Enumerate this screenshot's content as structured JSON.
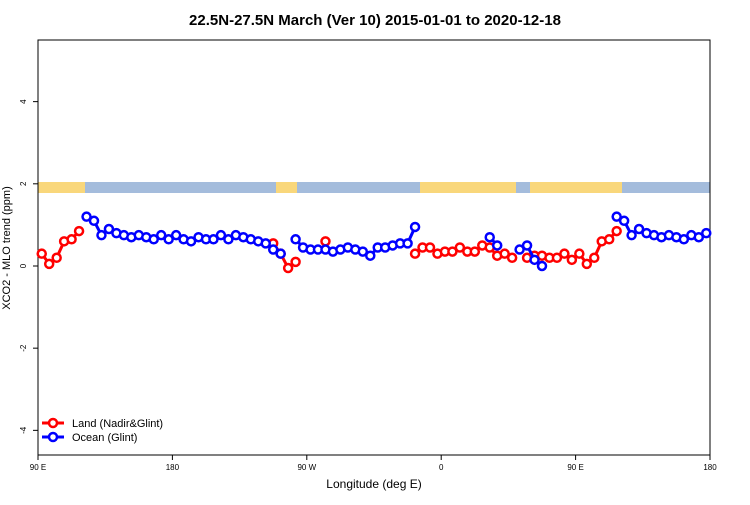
{
  "chart_data": {
    "type": "line",
    "title": "22.5N-27.5N March (Ver 10)   2015-01-01 to 2020-12-18",
    "x_label": "Longitude (deg E)",
    "y_label": "XCO2 - MLO trend (ppm)",
    "x": [
      92.5,
      97.5,
      102.5,
      107.5,
      112.5,
      117.5,
      122.5,
      127.5,
      132.5,
      137.5,
      142.5,
      147.5,
      152.5,
      157.5,
      162.5,
      167.5,
      172.5,
      177.5,
      182.5,
      187.5,
      192.5,
      197.5,
      202.5,
      207.5,
      212.5,
      217.5,
      222.5,
      227.5,
      232.5,
      237.5,
      242.5,
      247.5,
      252.5,
      257.5,
      262.5,
      267.5,
      272.5,
      277.5,
      282.5,
      287.5,
      292.5,
      297.5,
      302.5,
      307.5,
      312.5,
      317.5,
      322.5,
      327.5,
      332.5,
      337.5,
      342.5,
      347.5,
      352.5,
      357.5,
      362.5,
      367.5,
      372.5,
      377.5,
      382.5,
      387.5,
      392.5,
      397.5,
      402.5,
      407.5,
      412.5,
      417.5,
      422.5,
      427.5,
      432.5,
      437.5,
      442.5,
      447.5,
      452.5,
      457.5,
      462.5,
      467.5,
      472.5,
      477.5,
      482.5,
      487.5,
      492.5,
      497.5,
      502.5,
      507.5,
      512.5,
      517.5,
      522.5,
      527.5,
      532.5,
      537.5
    ],
    "series": [
      {
        "name": "Land (Nadir&Glint)",
        "color": "#ff0000",
        "values": [
          0.3,
          0.05,
          0.2,
          0.6,
          0.65,
          0.85,
          null,
          null,
          null,
          null,
          null,
          null,
          null,
          null,
          null,
          null,
          null,
          null,
          null,
          null,
          null,
          null,
          null,
          null,
          null,
          null,
          null,
          null,
          null,
          null,
          null,
          0.55,
          0.3,
          -0.05,
          0.1,
          null,
          null,
          null,
          0.6,
          null,
          null,
          null,
          null,
          null,
          null,
          null,
          null,
          null,
          null,
          null,
          0.3,
          0.45,
          0.45,
          0.3,
          0.35,
          0.35,
          0.45,
          0.35,
          0.35,
          0.5,
          0.45,
          0.25,
          0.3,
          0.2,
          null,
          0.2,
          0.25,
          0.25,
          0.2,
          0.2,
          0.3,
          0.15,
          0.3,
          0.05,
          0.2,
          0.6,
          0.65,
          0.85,
          null,
          null,
          null,
          null,
          null,
          null,
          null,
          null,
          null,
          null,
          null,
          null
        ]
      },
      {
        "name": "Ocean (Glint)",
        "color": "#0000ff",
        "values": [
          null,
          null,
          null,
          null,
          null,
          null,
          1.2,
          1.1,
          0.75,
          0.9,
          0.8,
          0.75,
          0.7,
          0.75,
          0.7,
          0.65,
          0.75,
          0.65,
          0.75,
          0.65,
          0.6,
          0.7,
          0.65,
          0.65,
          0.75,
          0.65,
          0.75,
          0.7,
          0.65,
          0.6,
          0.55,
          0.4,
          0.3,
          null,
          0.65,
          0.45,
          0.4,
          0.4,
          0.4,
          0.35,
          0.4,
          0.45,
          0.4,
          0.35,
          0.25,
          0.45,
          0.45,
          0.5,
          0.55,
          0.55,
          0.95,
          null,
          null,
          null,
          null,
          null,
          null,
          null,
          null,
          null,
          0.7,
          0.5,
          null,
          null,
          0.4,
          0.5,
          0.15,
          0.0,
          null,
          null,
          null,
          null,
          null,
          null,
          null,
          null,
          null,
          1.2,
          1.1,
          0.75,
          0.9,
          0.8,
          0.75,
          0.7,
          0.75,
          0.7,
          0.65,
          0.75,
          0.7,
          0.8
        ]
      }
    ],
    "xlim": [
      90,
      540
    ],
    "xticks": [
      {
        "value": 90,
        "label": "90 E"
      },
      180,
      {
        "value": 270,
        "label": "90 W"
      },
      {
        "value": 360,
        "label": "0"
      },
      {
        "value": 450,
        "label": "90 E"
      },
      {
        "value": 540,
        "label": "180"
      }
    ],
    "ylim": [
      -4.6,
      5.5
    ],
    "yticks": [
      -4,
      -2,
      0,
      2,
      4
    ],
    "legend": "bottom-left"
  }
}
